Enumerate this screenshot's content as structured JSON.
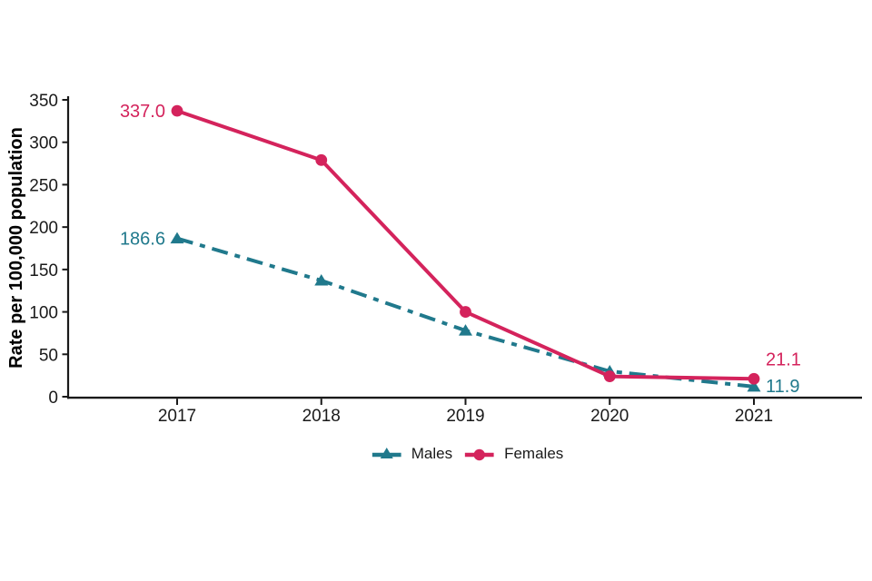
{
  "chart_data": {
    "type": "line",
    "title": "",
    "categories": [
      "2017",
      "2018",
      "2019",
      "2020",
      "2021"
    ],
    "xlabel": "",
    "ylabel": "Rate per 100,000 population",
    "ylim": [
      0,
      350
    ],
    "yticks": [
      0,
      50,
      100,
      150,
      200,
      250,
      300,
      350
    ],
    "grid": false,
    "legend_position": "bottom-center",
    "axis_color": "#1a1a1a",
    "series": [
      {
        "name": "Males",
        "color": "#20798c",
        "line_style": "dash-dot",
        "marker": "triangle",
        "values": [
          186.6,
          137,
          78,
          30,
          11.9
        ],
        "first_point_label": "186.6",
        "last_point_label": "11.9"
      },
      {
        "name": "Females",
        "color": "#d4235c",
        "line_style": "solid",
        "marker": "circle",
        "values": [
          337.0,
          279,
          100,
          24,
          21.1
        ],
        "first_point_label": "337.0",
        "last_point_label": "21.1"
      }
    ]
  }
}
